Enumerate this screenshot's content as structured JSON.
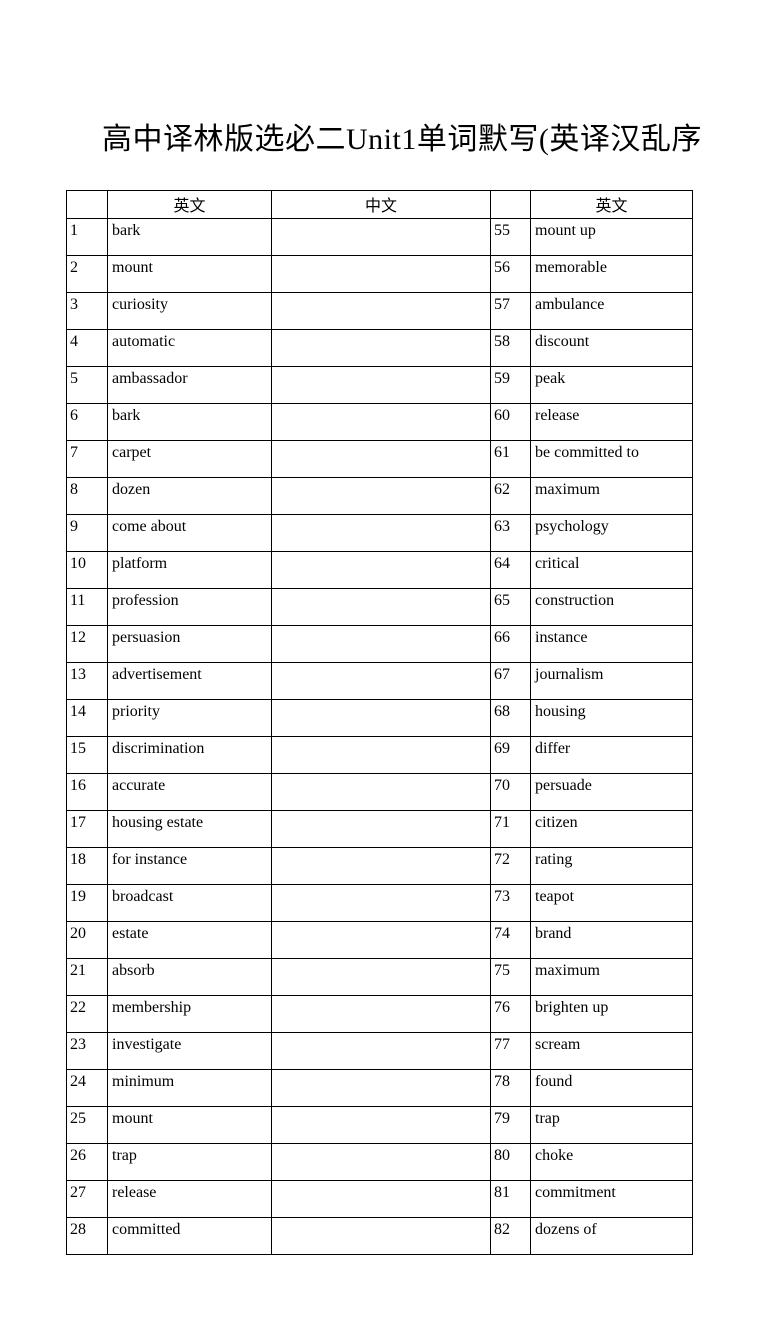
{
  "page": {
    "title": "高中译林版选必二Unit1单词默写(英译汉乱序"
  },
  "table": {
    "headers": {
      "num_left": "",
      "english_left": "英文",
      "chinese": "中文",
      "num_right": "",
      "english_right": "英文"
    },
    "rows": [
      {
        "left_no": "1",
        "left_word": "bark",
        "chinese": "",
        "right_no": "55",
        "right_word": "mount up"
      },
      {
        "left_no": "2",
        "left_word": "mount",
        "chinese": "",
        "right_no": "56",
        "right_word": "memorable"
      },
      {
        "left_no": "3",
        "left_word": "curiosity",
        "chinese": "",
        "right_no": "57",
        "right_word": "ambulance"
      },
      {
        "left_no": "4",
        "left_word": "automatic",
        "chinese": "",
        "right_no": "58",
        "right_word": "discount"
      },
      {
        "left_no": "5",
        "left_word": "ambassador",
        "chinese": "",
        "right_no": "59",
        "right_word": "peak"
      },
      {
        "left_no": "6",
        "left_word": "bark",
        "chinese": "",
        "right_no": "60",
        "right_word": "release"
      },
      {
        "left_no": "7",
        "left_word": "carpet",
        "chinese": "",
        "right_no": "61",
        "right_word": "be committed to"
      },
      {
        "left_no": "8",
        "left_word": "dozen",
        "chinese": "",
        "right_no": "62",
        "right_word": "maximum"
      },
      {
        "left_no": "9",
        "left_word": "come about",
        "chinese": "",
        "right_no": "63",
        "right_word": "psychology"
      },
      {
        "left_no": "10",
        "left_word": "platform",
        "chinese": "",
        "right_no": "64",
        "right_word": "critical"
      },
      {
        "left_no": "11",
        "left_word": "profession",
        "chinese": "",
        "right_no": "65",
        "right_word": "construction"
      },
      {
        "left_no": "12",
        "left_word": "persuasion",
        "chinese": "",
        "right_no": "66",
        "right_word": "instance"
      },
      {
        "left_no": "13",
        "left_word": "advertisement",
        "chinese": "",
        "right_no": "67",
        "right_word": "journalism"
      },
      {
        "left_no": "14",
        "left_word": "priority",
        "chinese": "",
        "right_no": "68",
        "right_word": "housing"
      },
      {
        "left_no": "15",
        "left_word": "discrimination",
        "chinese": "",
        "right_no": "69",
        "right_word": "differ"
      },
      {
        "left_no": "16",
        "left_word": "accurate",
        "chinese": "",
        "right_no": "70",
        "right_word": "persuade"
      },
      {
        "left_no": "17",
        "left_word": "housing estate",
        "chinese": "",
        "right_no": "71",
        "right_word": "citizen"
      },
      {
        "left_no": "18",
        "left_word": "for instance",
        "chinese": "",
        "right_no": "72",
        "right_word": "rating"
      },
      {
        "left_no": "19",
        "left_word": "broadcast",
        "chinese": "",
        "right_no": "73",
        "right_word": "teapot"
      },
      {
        "left_no": "20",
        "left_word": "estate",
        "chinese": "",
        "right_no": "74",
        "right_word": "brand"
      },
      {
        "left_no": "21",
        "left_word": "absorb",
        "chinese": "",
        "right_no": "75",
        "right_word": "maximum"
      },
      {
        "left_no": "22",
        "left_word": "membership",
        "chinese": "",
        "right_no": "76",
        "right_word": "brighten up"
      },
      {
        "left_no": "23",
        "left_word": "investigate",
        "chinese": "",
        "right_no": "77",
        "right_word": "scream"
      },
      {
        "left_no": "24",
        "left_word": "minimum",
        "chinese": "",
        "right_no": "78",
        "right_word": "found"
      },
      {
        "left_no": "25",
        "left_word": "mount",
        "chinese": "",
        "right_no": "79",
        "right_word": "trap"
      },
      {
        "left_no": "26",
        "left_word": "trap",
        "chinese": "",
        "right_no": "80",
        "right_word": "choke"
      },
      {
        "left_no": "27",
        "left_word": "release",
        "chinese": "",
        "right_no": "81",
        "right_word": "commitment"
      },
      {
        "left_no": "28",
        "left_word": "committed",
        "chinese": "",
        "right_no": "82",
        "right_word": "dozens of"
      }
    ]
  },
  "colors": {
    "background": "#ffffff",
    "text": "#000000",
    "border": "#000000"
  }
}
